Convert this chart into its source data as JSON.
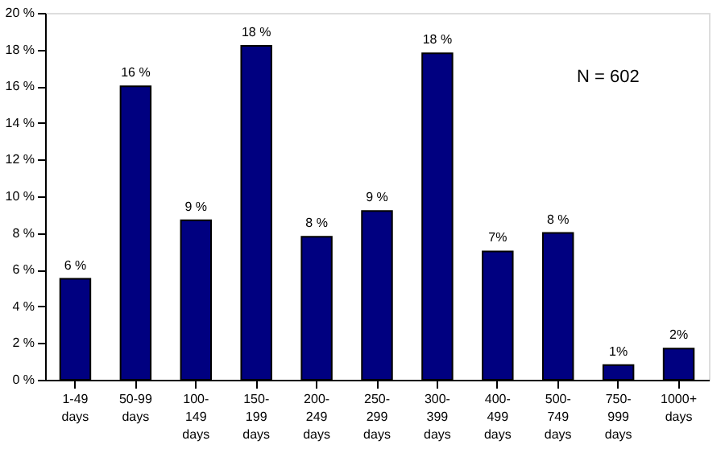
{
  "chart_data": {
    "type": "bar",
    "categories": [
      "1-49 days",
      "50-99 days",
      "100-149 days",
      "150-199 days",
      "200-249 days",
      "250-299 days",
      "300-399 days",
      "400-499 days",
      "500-749 days",
      "750-999 days",
      "1000+ days"
    ],
    "values": [
      5.5,
      16,
      8.7,
      18.2,
      7.8,
      9.2,
      17.8,
      7,
      8,
      0.8,
      1.7
    ],
    "value_labels": [
      "6 %",
      "16 %",
      "9 %",
      "18 %",
      "8 %",
      "9 %",
      "18 %",
      "7%",
      "8 %",
      "1%",
      "2%"
    ],
    "color": "#000080",
    "ylim": [
      0,
      20
    ],
    "yticks": [
      {
        "value": 0,
        "label": "0 %"
      },
      {
        "value": 2,
        "label": "2 %"
      },
      {
        "value": 4,
        "label": "4 %"
      },
      {
        "value": 6,
        "label": "6 %"
      },
      {
        "value": 8,
        "label": "8 %"
      },
      {
        "value": 10,
        "label": "10 %"
      },
      {
        "value": 12,
        "label": "12 %"
      },
      {
        "value": 14,
        "label": "14 %"
      },
      {
        "value": 16,
        "label": "16 %"
      },
      {
        "value": 18,
        "label": "18 %"
      },
      {
        "value": 20,
        "label": "20 %"
      }
    ],
    "annotations": [
      "N = 602"
    ],
    "grid": false
  }
}
